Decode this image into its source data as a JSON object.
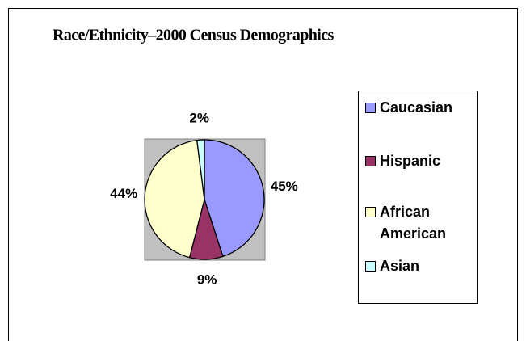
{
  "chart_data": {
    "type": "pie",
    "title": "Race/Ethnicity–2000 Census Demographics",
    "categories": [
      "Caucasian",
      "Hispanic",
      "African American",
      "Asian"
    ],
    "values": [
      45,
      9,
      44,
      2
    ],
    "value_labels": [
      "45%",
      "9%",
      "44%",
      "2%"
    ],
    "colors": [
      "#9999ff",
      "#993366",
      "#ffffcc",
      "#ccffff"
    ],
    "legend": "right"
  }
}
